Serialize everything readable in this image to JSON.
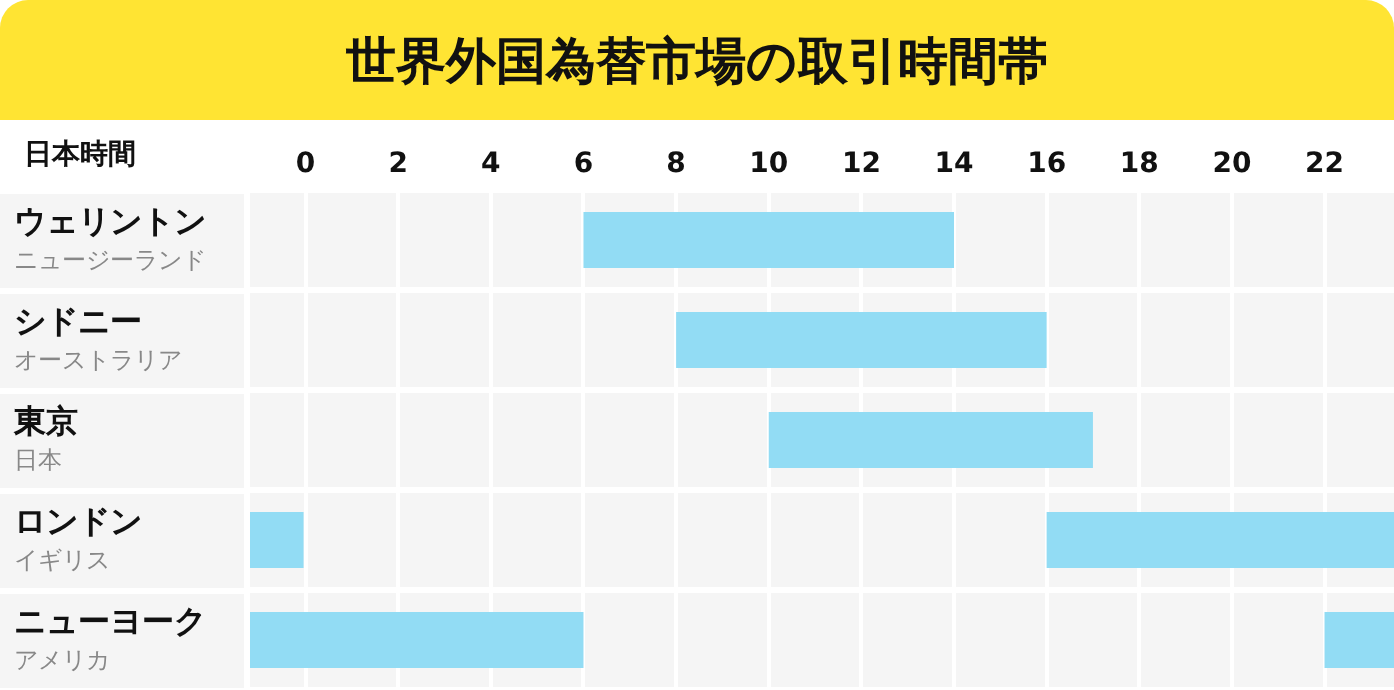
{
  "chart_data": {
    "type": "bar",
    "orientation": "horizontal",
    "title": "世界外国為替市場の取引時間帯",
    "ylabel": "日本時間",
    "categories": [
      "ウェリントン",
      "シドニー",
      "東京",
      "ロンドン",
      "ニューヨーク"
    ],
    "annotations": [
      "ニュージーランド",
      "オーストラリア",
      "日本",
      "イギリス",
      "アメリカ"
    ],
    "series": [
      {
        "color": "#92dcf4",
        "base": [
          6,
          8,
          10,
          16,
          -1.2
        ],
        "values": [
          8,
          8,
          7,
          7.5,
          7.2
        ]
      },
      {
        "color": "#92dcf4",
        "base": [
          null,
          null,
          null,
          -1.2,
          22
        ],
        "values": [
          null,
          null,
          null,
          1.2,
          1.5
        ]
      }
    ],
    "xlim": [
      -1.2,
      23.5
    ],
    "xticks": [
      0,
      2,
      4,
      6,
      8,
      10,
      12,
      14,
      16,
      18,
      20,
      22
    ],
    "grid": true,
    "legend": false
  }
}
